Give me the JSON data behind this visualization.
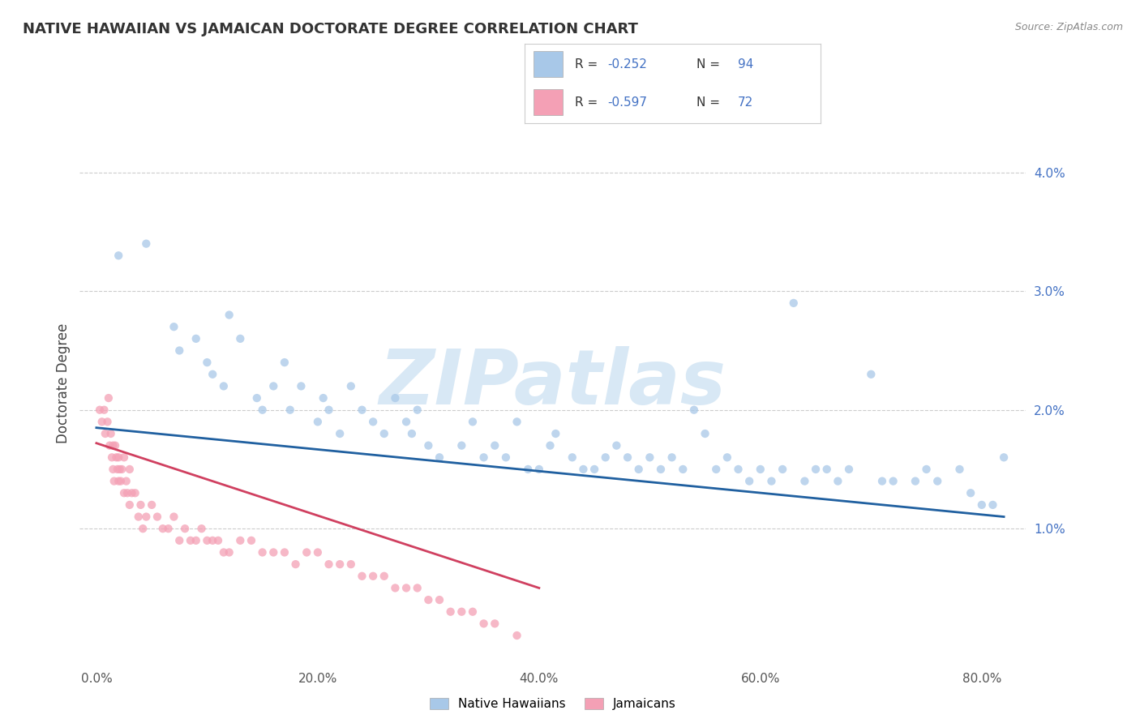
{
  "title": "NATIVE HAWAIIAN VS JAMAICAN DOCTORATE DEGREE CORRELATION CHART",
  "source_text": "Source: ZipAtlas.com",
  "ylabel": "Doctorate Degree",
  "xlabel_ticks": [
    "0.0%",
    "20.0%",
    "40.0%",
    "60.0%",
    "80.0%"
  ],
  "xlabel_vals": [
    0.0,
    20.0,
    40.0,
    60.0,
    80.0
  ],
  "ylabel_ticks": [
    "1.0%",
    "2.0%",
    "3.0%",
    "4.0%"
  ],
  "ylabel_vals": [
    1.0,
    2.0,
    3.0,
    4.0
  ],
  "xlim": [
    -1.5,
    84
  ],
  "ylim": [
    -0.15,
    4.6
  ],
  "blue_color": "#a8c8e8",
  "pink_color": "#f4a0b5",
  "blue_line_color": "#2060a0",
  "pink_line_color": "#d04060",
  "legend_label1": "Native Hawaiians",
  "legend_label2": "Jamaicans",
  "watermark": "ZIPatlas",
  "blue_scatter_x": [
    2.0,
    4.5,
    7.0,
    7.5,
    9.0,
    10.0,
    10.5,
    11.5,
    12.0,
    13.0,
    14.5,
    15.0,
    16.0,
    17.0,
    17.5,
    18.5,
    20.0,
    20.5,
    21.0,
    22.0,
    23.0,
    24.0,
    25.0,
    26.0,
    27.0,
    28.0,
    28.5,
    29.0,
    30.0,
    31.0,
    33.0,
    34.0,
    35.0,
    36.0,
    37.0,
    38.0,
    39.0,
    40.0,
    41.0,
    41.5,
    43.0,
    44.0,
    45.0,
    46.0,
    47.0,
    48.0,
    49.0,
    50.0,
    51.0,
    52.0,
    53.0,
    54.0,
    55.0,
    56.0,
    57.0,
    58.0,
    59.0,
    60.0,
    61.0,
    62.0,
    63.0,
    64.0,
    65.0,
    66.0,
    67.0,
    68.0,
    70.0,
    71.0,
    72.0,
    74.0,
    75.0,
    76.0,
    78.0,
    79.0,
    80.0,
    81.0,
    82.0
  ],
  "blue_scatter_y": [
    3.3,
    3.4,
    2.7,
    2.5,
    2.6,
    2.4,
    2.3,
    2.2,
    2.8,
    2.6,
    2.1,
    2.0,
    2.2,
    2.4,
    2.0,
    2.2,
    1.9,
    2.1,
    2.0,
    1.8,
    2.2,
    2.0,
    1.9,
    1.8,
    2.1,
    1.9,
    1.8,
    2.0,
    1.7,
    1.6,
    1.7,
    1.9,
    1.6,
    1.7,
    1.6,
    1.9,
    1.5,
    1.5,
    1.7,
    1.8,
    1.6,
    1.5,
    1.5,
    1.6,
    1.7,
    1.6,
    1.5,
    1.6,
    1.5,
    1.6,
    1.5,
    2.0,
    1.8,
    1.5,
    1.6,
    1.5,
    1.4,
    1.5,
    1.4,
    1.5,
    2.9,
    1.4,
    1.5,
    1.5,
    1.4,
    1.5,
    2.3,
    1.4,
    1.4,
    1.4,
    1.5,
    1.4,
    1.5,
    1.3,
    1.2,
    1.2,
    1.6
  ],
  "pink_scatter_x": [
    0.3,
    0.5,
    0.7,
    0.8,
    1.0,
    1.1,
    1.2,
    1.3,
    1.4,
    1.5,
    1.5,
    1.6,
    1.7,
    1.8,
    1.9,
    2.0,
    2.0,
    2.1,
    2.2,
    2.3,
    2.5,
    2.5,
    2.7,
    2.8,
    3.0,
    3.0,
    3.2,
    3.5,
    3.8,
    4.0,
    4.2,
    4.5,
    5.0,
    5.5,
    6.0,
    6.5,
    7.0,
    7.5,
    8.0,
    8.5,
    9.0,
    9.5,
    10.0,
    10.5,
    11.0,
    11.5,
    12.0,
    13.0,
    14.0,
    15.0,
    16.0,
    17.0,
    18.0,
    19.0,
    20.0,
    21.0,
    22.0,
    23.0,
    24.0,
    25.0,
    26.0,
    27.0,
    28.0,
    29.0,
    30.0,
    31.0,
    32.0,
    33.0,
    34.0,
    35.0,
    36.0,
    38.0
  ],
  "pink_scatter_y": [
    2.0,
    1.9,
    2.0,
    1.8,
    1.9,
    2.1,
    1.7,
    1.8,
    1.6,
    1.5,
    1.7,
    1.4,
    1.7,
    1.6,
    1.5,
    1.6,
    1.4,
    1.5,
    1.4,
    1.5,
    1.6,
    1.3,
    1.4,
    1.3,
    1.5,
    1.2,
    1.3,
    1.3,
    1.1,
    1.2,
    1.0,
    1.1,
    1.2,
    1.1,
    1.0,
    1.0,
    1.1,
    0.9,
    1.0,
    0.9,
    0.9,
    1.0,
    0.9,
    0.9,
    0.9,
    0.8,
    0.8,
    0.9,
    0.9,
    0.8,
    0.8,
    0.8,
    0.7,
    0.8,
    0.8,
    0.7,
    0.7,
    0.7,
    0.6,
    0.6,
    0.6,
    0.5,
    0.5,
    0.5,
    0.4,
    0.4,
    0.3,
    0.3,
    0.3,
    0.2,
    0.2,
    0.1
  ],
  "blue_line_x": [
    0,
    82
  ],
  "blue_line_y": [
    1.85,
    1.1
  ],
  "pink_line_x": [
    0,
    40
  ],
  "pink_line_y": [
    1.72,
    0.5
  ],
  "title_fontsize": 13,
  "tick_fontsize": 11,
  "label_fontsize": 12,
  "background_color": "#ffffff",
  "grid_color": "#cccccc",
  "watermark_color": "#d8e8f5",
  "watermark_fontsize": 68
}
